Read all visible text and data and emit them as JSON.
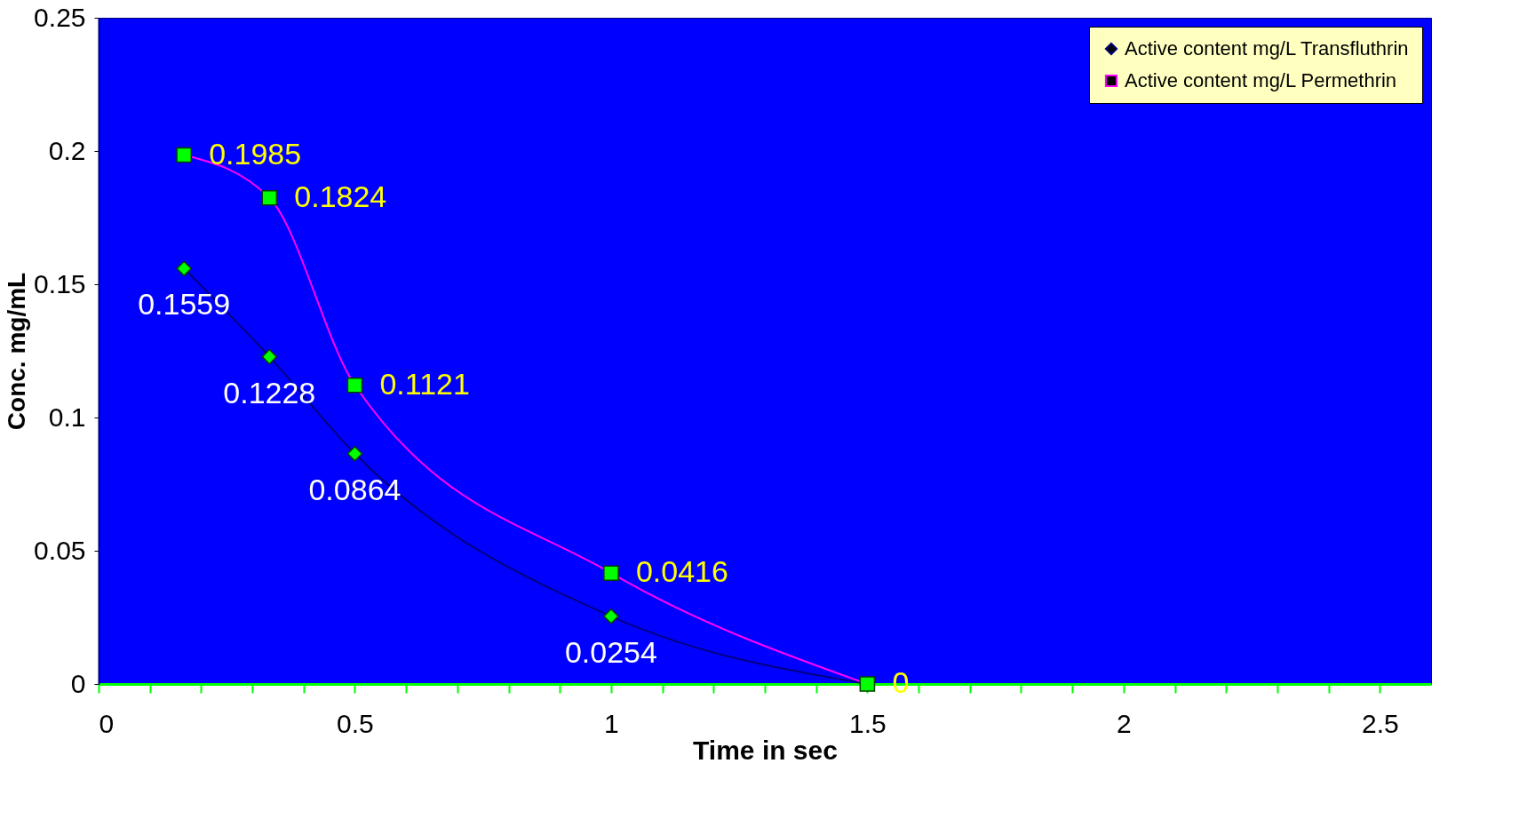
{
  "chart_data": {
    "type": "line",
    "xlabel": "Time in sec",
    "ylabel": "Conc. mg/mL",
    "x": [
      0.1667,
      0.3333,
      0.5,
      1,
      1.5
    ],
    "series": [
      {
        "name": "Active content mg/L Transfluthrin",
        "color": "#000080",
        "marker": "diamond",
        "values": [
          0.1559,
          0.1228,
          0.0864,
          0.0254,
          0
        ],
        "value_labels": [
          "0.1559",
          "0.1228",
          "0.0864",
          "0.0254",
          null
        ]
      },
      {
        "name": "Active content mg/L Permethrin",
        "color": "#ff00ff",
        "marker": "square",
        "values": [
          0.1985,
          0.1824,
          0.1121,
          0.0416,
          0
        ],
        "value_labels": [
          "0.1985",
          "0.1824",
          "0.1121",
          "0.0416",
          "0"
        ]
      }
    ],
    "xlim": [
      0,
      2.6
    ],
    "xticks": [
      0,
      {
        "value": 0.1,
        "label": null
      },
      {
        "value": 0.2,
        "label": null
      },
      {
        "value": 0.3,
        "label": null
      },
      {
        "value": 0.4,
        "label": null
      },
      0.5,
      {
        "value": 0.6,
        "label": null
      },
      {
        "value": 0.7,
        "label": null
      },
      {
        "value": 0.8,
        "label": null
      },
      {
        "value": 0.9,
        "label": null
      },
      1,
      {
        "value": 1.1,
        "label": null
      },
      {
        "value": 1.2,
        "label": null
      },
      {
        "value": 1.3,
        "label": null
      },
      {
        "value": 1.4,
        "label": null
      },
      1.5,
      {
        "value": 1.6,
        "label": null
      },
      {
        "value": 1.7,
        "label": null
      },
      {
        "value": 1.8,
        "label": null
      },
      {
        "value": 1.9,
        "label": null
      },
      2,
      {
        "value": 2.1,
        "label": null
      },
      {
        "value": 2.2,
        "label": null
      },
      {
        "value": 2.3,
        "label": null
      },
      {
        "value": 2.4,
        "label": null
      },
      2.5
    ],
    "ylim": [
      0,
      0.25
    ],
    "yticks": [
      0,
      0.05,
      0.1,
      0.15,
      0.2,
      0.25
    ],
    "grid": false,
    "legend": "top right",
    "line_style": "solid"
  }
}
